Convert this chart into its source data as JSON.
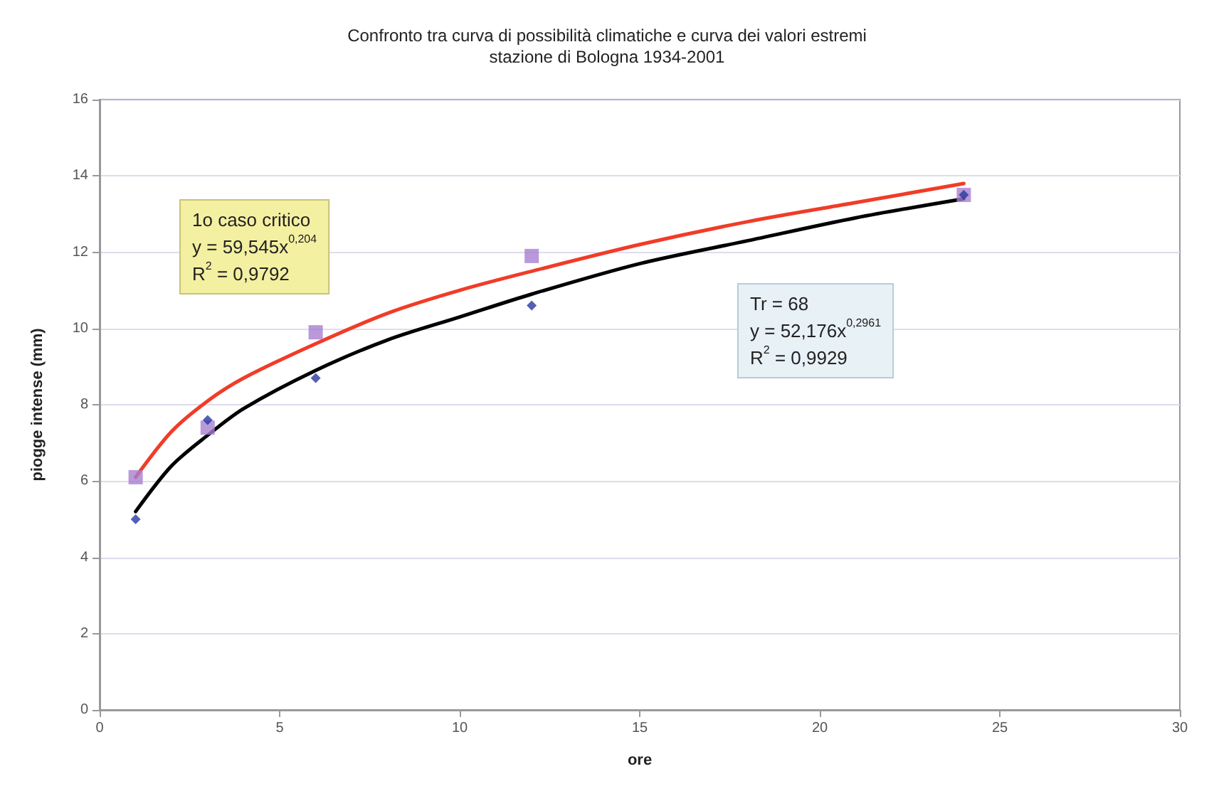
{
  "chart_data": {
    "type": "scatter",
    "title": "Confronto tra curva di possibilità climatiche e curva dei valori estremi",
    "subtitle": "stazione di Bologna 1934-2001",
    "xlabel": "ore",
    "ylabel": "piogge intense (mm)",
    "xlim": [
      0,
      30
    ],
    "xticks": [
      0,
      5,
      10,
      15,
      20,
      25,
      30
    ],
    "ylim": [
      0,
      16
    ],
    "yticks": [
      0,
      2,
      4,
      6,
      8,
      10,
      12,
      14,
      16
    ],
    "grid": "y",
    "series": [
      {
        "type": "line",
        "color": "#f03c28",
        "marker": "none",
        "x": [
          1,
          2,
          3,
          4,
          6,
          8,
          10,
          12,
          15,
          18,
          21,
          24
        ],
        "values": [
          6.1,
          7.3,
          8.1,
          8.7,
          9.6,
          10.4,
          11.0,
          11.5,
          12.2,
          12.8,
          13.3,
          13.8
        ]
      },
      {
        "type": "line",
        "color": "#000000",
        "marker": "none",
        "x": [
          1,
          2,
          3,
          4,
          6,
          8,
          10,
          12,
          15,
          18,
          21,
          24
        ],
        "values": [
          5.2,
          6.4,
          7.2,
          7.9,
          8.9,
          9.7,
          10.3,
          10.9,
          11.7,
          12.3,
          12.9,
          13.4
        ]
      },
      {
        "color": "#a77fd0",
        "marker": "square",
        "x": [
          1,
          3,
          6,
          12,
          24
        ],
        "values": [
          6.1,
          7.4,
          9.9,
          11.9,
          13.5
        ]
      },
      {
        "color": "#2838a0",
        "marker": "diamond",
        "x": [
          1,
          3,
          6,
          12,
          24
        ],
        "values": [
          5.0,
          7.6,
          8.7,
          10.6,
          13.5
        ]
      }
    ],
    "annotations": [
      "1o caso critico\ny = 59,545x$^{0,204}$\nR$^{2}$ = 0,9792",
      "Tr = 68\ny = 52,176x$^{0,2961}$\nR$^{2}$ = 0,9929"
    ]
  }
}
